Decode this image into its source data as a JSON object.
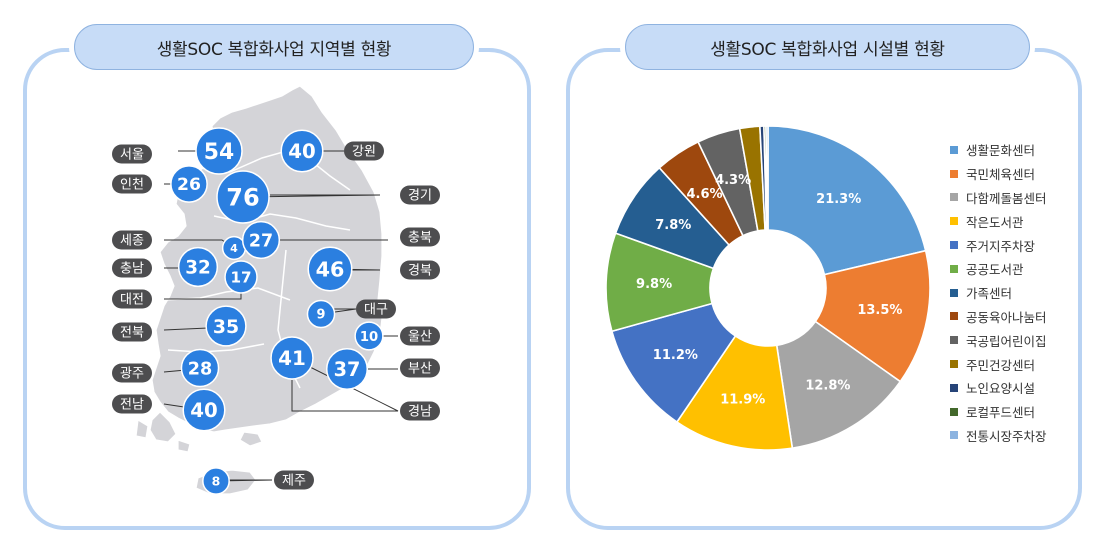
{
  "left_title": "생활SOC 복합화사업 지역별 현황",
  "right_title": "생활SOC 복합화사업 시설별 현황",
  "chart_data": [
    {
      "type": "bubble-map",
      "title": "생활SOC 복합화사업 지역별 현황",
      "regions": [
        {
          "name": "서울",
          "value": 54
        },
        {
          "name": "강원",
          "value": 40
        },
        {
          "name": "인천",
          "value": 26
        },
        {
          "name": "경기",
          "value": 76
        },
        {
          "name": "세종",
          "value": 4
        },
        {
          "name": "충북",
          "value": 27
        },
        {
          "name": "충남",
          "value": 32
        },
        {
          "name": "대전",
          "value": 17
        },
        {
          "name": "경북",
          "value": 46
        },
        {
          "name": "대구",
          "value": 9
        },
        {
          "name": "전북",
          "value": 35
        },
        {
          "name": "울산",
          "value": 10
        },
        {
          "name": "광주",
          "value": 28
        },
        {
          "name": "부산",
          "value": 37
        },
        {
          "name": "전남",
          "value": 40
        },
        {
          "name": "경남",
          "value": 41
        },
        {
          "name": "제주",
          "value": 8
        }
      ]
    },
    {
      "type": "pie",
      "title": "생활SOC 복합화사업 시설별 현황",
      "donut": true,
      "legend_position": "right",
      "slices": [
        {
          "name": "생활문화센터",
          "value": 21.3,
          "label": "21.3%",
          "color": "#5b9bd5"
        },
        {
          "name": "국민체육센터",
          "value": 13.5,
          "label": "13.5%",
          "color": "#ed7d31"
        },
        {
          "name": "다함께돌봄센터",
          "value": 12.8,
          "label": "12.8%",
          "color": "#a5a5a5"
        },
        {
          "name": "작은도서관",
          "value": 11.9,
          "label": "11.9%",
          "color": "#ffc000"
        },
        {
          "name": "주거지주차장",
          "value": 11.2,
          "label": "11.2%",
          "color": "#4472c4"
        },
        {
          "name": "공공도서관",
          "value": 9.8,
          "label": "9.8%",
          "color": "#70ad47"
        },
        {
          "name": "가족센터",
          "value": 7.8,
          "label": "7.8%",
          "color": "#255e91"
        },
        {
          "name": "공동육아나눔터",
          "value": 4.6,
          "label": "4.6%",
          "color": "#9e480e"
        },
        {
          "name": "국공립어린이집",
          "value": 4.3,
          "label": "4.3%",
          "color": "#636363"
        },
        {
          "name": "주민건강센터",
          "value": 2.0,
          "label": "",
          "color": "#997300"
        },
        {
          "name": "노인요양시설",
          "value": 0.4,
          "label": "",
          "color": "#264478"
        },
        {
          "name": "로컬푸드센터",
          "value": 0.2,
          "label": "",
          "color": "#43682b"
        },
        {
          "name": "전통시장주차장",
          "value": 0.2,
          "label": "",
          "color": "#8cb3e0"
        }
      ]
    }
  ],
  "colors": {
    "panel_border": "#b9d3f3",
    "title_fill": "#c7dcf7",
    "map_fill": "#d4d4d8",
    "bubble": "#2b7fe0",
    "tag_fill": "#4d4d4f"
  }
}
